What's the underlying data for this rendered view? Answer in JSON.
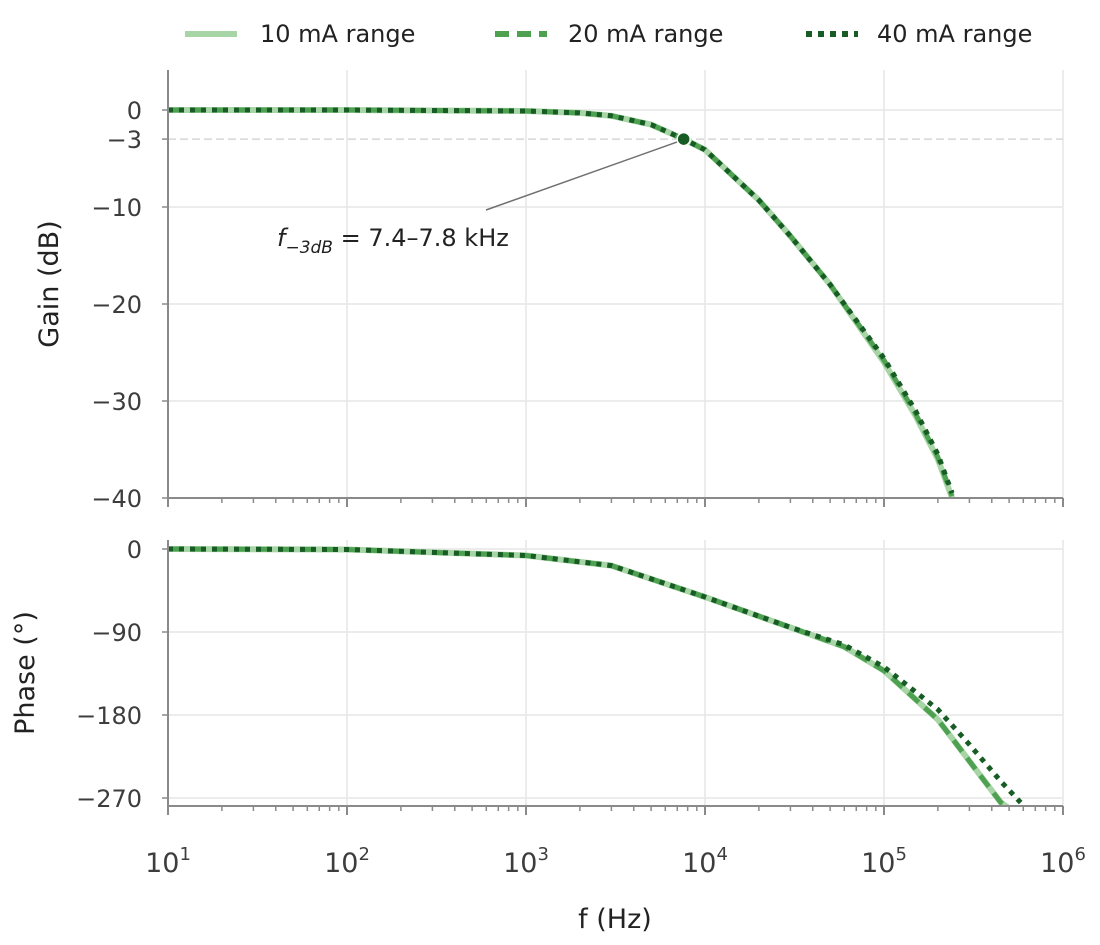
{
  "chart_data": {
    "type": "line",
    "x_scale": "log",
    "xlim": [
      10,
      1000000
    ],
    "xlabel": "f (Hz)",
    "x_tick_labels": [
      "10",
      "10",
      "10",
      "10",
      "10",
      "10"
    ],
    "x_tick_exponents": [
      "1",
      "2",
      "3",
      "4",
      "5",
      "6"
    ],
    "grid": true,
    "legend": {
      "placement": "top",
      "entries": [
        "10 mA range",
        "20 mA range",
        "40 mA range"
      ]
    },
    "colors": {
      "10 mA range": "#a8d5a6",
      "20 mA range": "#4ea151",
      "40 mA range": "#165c24",
      "grid": "#e6e6e6",
      "axis": "#8a8a8a"
    },
    "panels": [
      {
        "ylabel": "Gain (dB)",
        "ylim": [
          -40,
          0
        ],
        "y_ticks": [
          0,
          -3,
          -10,
          -20,
          -30,
          -40
        ],
        "y_tick_labels": [
          "0",
          "−3",
          "−10",
          "−20",
          "−30",
          "−40"
        ],
        "reference_line_y": -3,
        "x": [
          10,
          100,
          1000,
          2000,
          3000,
          5000,
          7600,
          10000,
          20000,
          30000,
          50000,
          100000,
          150000,
          200000,
          240000
        ],
        "series": [
          {
            "name": "10 mA range",
            "style": "solid",
            "values": [
              0,
              0,
              -0.1,
              -0.3,
              -0.6,
              -1.5,
              -3.0,
              -4.1,
              -9.3,
              -13.0,
              -18.0,
              -26.0,
              -31.5,
              -36.0,
              -40.0
            ]
          },
          {
            "name": "20 mA range",
            "style": "dashed",
            "values": [
              0,
              0,
              -0.1,
              -0.3,
              -0.6,
              -1.5,
              -3.0,
              -4.1,
              -9.3,
              -13.0,
              -18.0,
              -25.8,
              -31.3,
              -35.8,
              -39.8
            ]
          },
          {
            "name": "40 mA range",
            "style": "dotted",
            "values": [
              0,
              0,
              -0.1,
              -0.3,
              -0.6,
              -1.5,
              -3.0,
              -4.1,
              -9.3,
              -13.0,
              -18.0,
              -25.6,
              -31.0,
              -35.5,
              -39.5
            ]
          }
        ],
        "annotation": {
          "text_main": "f",
          "text_sub": "−3dB",
          "text_rest": " = 7.4–7.8 kHz",
          "point_x": 7600,
          "point_y": -3
        }
      },
      {
        "ylabel": "Phase (°)",
        "ylim": [
          -270,
          0
        ],
        "y_ticks": [
          0,
          -90,
          -180,
          -270
        ],
        "y_tick_labels": [
          "0",
          "−90",
          "−180",
          "−270"
        ],
        "x": [
          10,
          100,
          1000,
          3000,
          10000,
          30000,
          60000,
          100000,
          200000,
          300000,
          450000,
          580000
        ],
        "series": [
          {
            "name": "10 mA range",
            "style": "solid",
            "values": [
              0,
              -0.5,
              -7,
              -18,
              -52,
              -85,
              -106,
              -132,
              -185,
              -230,
              -275,
              -290
            ]
          },
          {
            "name": "20 mA range",
            "style": "dashed",
            "values": [
              0,
              -0.5,
              -7,
              -18,
              -52,
              -85,
              -106,
              -132,
              -185,
              -230,
              -275,
              -290
            ]
          },
          {
            "name": "40 mA range",
            "style": "dotted",
            "values": [
              0,
              -0.5,
              -7,
              -18,
              -52,
              -85,
              -104,
              -128,
              -174,
              -212,
              -252,
              -275
            ]
          }
        ]
      }
    ]
  }
}
